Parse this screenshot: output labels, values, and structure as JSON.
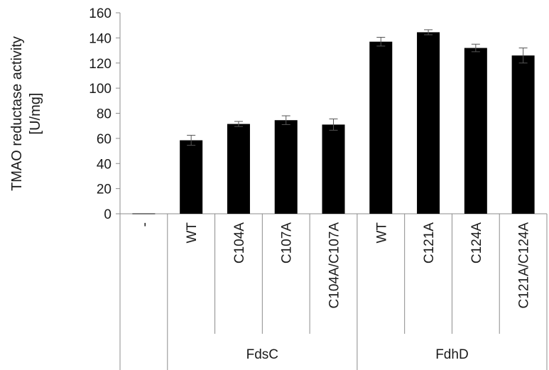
{
  "chart_data": {
    "type": "bar",
    "ylabel_lines": [
      "TMAO reductase activity",
      "[U/mg]"
    ],
    "ylim": [
      0,
      160
    ],
    "yticks": [
      0,
      20,
      40,
      60,
      80,
      100,
      120,
      140,
      160
    ],
    "categories": [
      "-",
      "WT",
      "C104A",
      "C107A",
      "C104A/C107A",
      "WT",
      "C121A",
      "C124A",
      "C121A/C124A"
    ],
    "groups": [
      {
        "name": "FdsC",
        "start": 1,
        "end": 4
      },
      {
        "name": "FdhD",
        "start": 5,
        "end": 8
      }
    ],
    "series": [
      {
        "values": [
          0,
          58.5,
          71.5,
          74.5,
          71,
          137,
          144.5,
          132,
          126
        ],
        "errors": [
          0,
          4,
          2,
          3.5,
          4.5,
          3.5,
          2,
          3,
          6
        ]
      }
    ],
    "bar_color": "#000000",
    "grid": false
  }
}
